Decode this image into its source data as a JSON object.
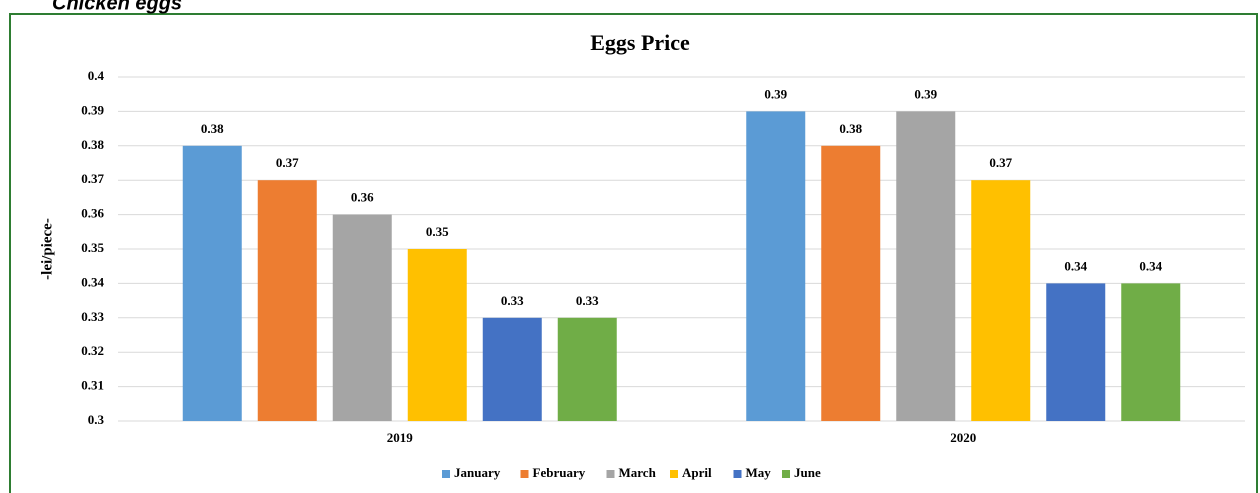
{
  "heading": "Chicken eggs",
  "chart_data": {
    "type": "bar",
    "title": "Eggs Price",
    "y_label": "-lei/piece-",
    "categories": [
      "2019",
      "2020"
    ],
    "series": [
      {
        "name": "January",
        "color": "#5b9bd5",
        "values": [
          0.38,
          0.39
        ]
      },
      {
        "name": "February",
        "color": "#ed7d31",
        "values": [
          0.37,
          0.38
        ]
      },
      {
        "name": "March",
        "color": "#a5a5a5",
        "values": [
          0.36,
          0.39
        ]
      },
      {
        "name": "April",
        "color": "#ffc000",
        "values": [
          0.35,
          0.37
        ]
      },
      {
        "name": "May",
        "color": "#4472c4",
        "values": [
          0.33,
          0.34
        ]
      },
      {
        "name": "June",
        "color": "#70ad47",
        "values": [
          0.33,
          0.34
        ]
      }
    ],
    "ylim": [
      0.3,
      0.4
    ],
    "yticks": [
      0.3,
      0.31,
      0.32,
      0.33,
      0.34,
      0.35,
      0.36,
      0.37,
      0.38,
      0.39,
      0.4
    ],
    "grid": true,
    "legend": "bottom"
  }
}
